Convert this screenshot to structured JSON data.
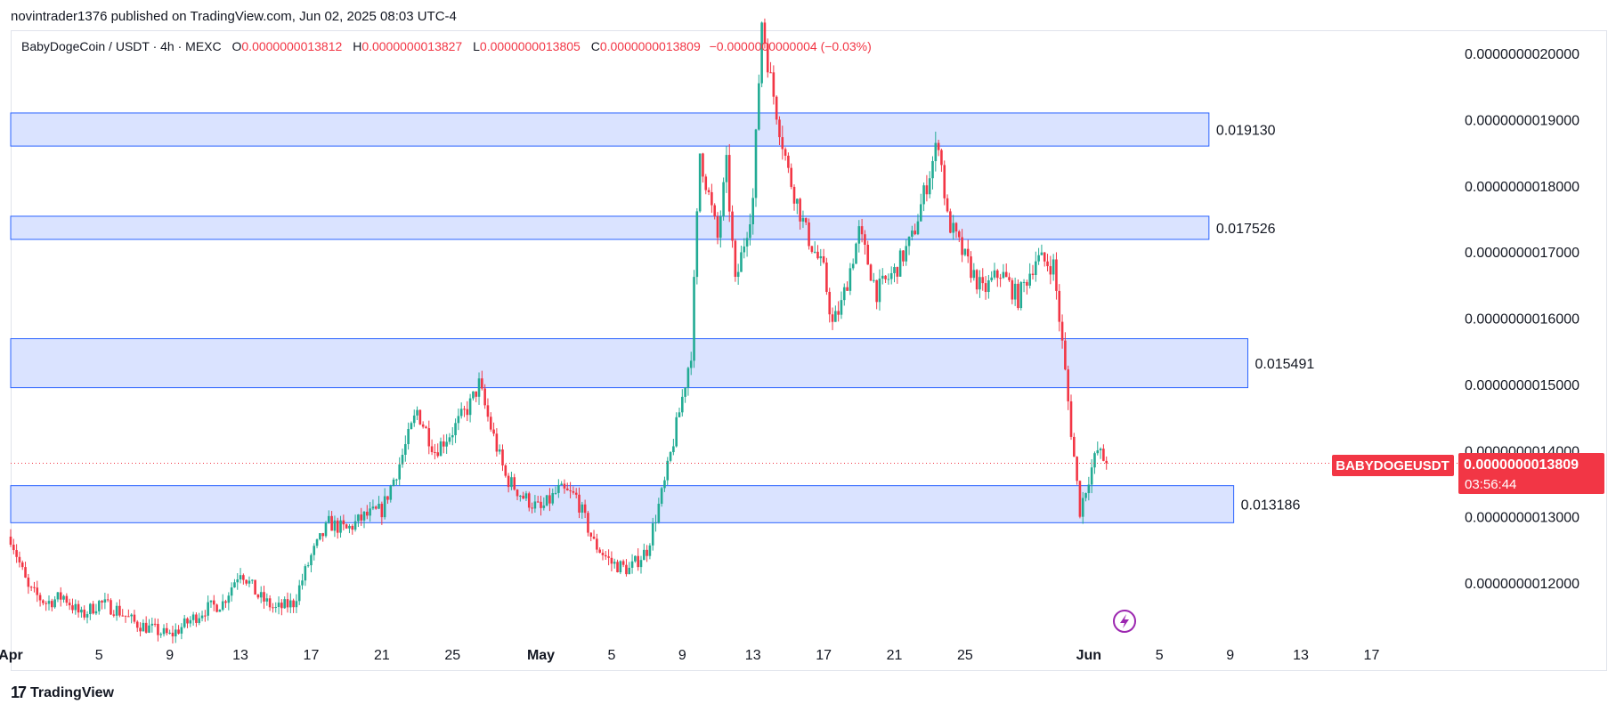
{
  "header": {
    "publish_line": "novintrader1376 published on TradingView.com, Jun 02, 2025 08:03 UTC-4"
  },
  "legend": {
    "symbol": "BabyDogeCoin / USDT · 4h · MEXC",
    "o_label": "O",
    "o_value": "0.0000000013812",
    "h_label": "H",
    "h_value": "0.0000000013827",
    "l_label": "L",
    "l_value": "0.0000000013805",
    "c_label": "C",
    "c_value": "0.0000000013809",
    "change": "−0.0000000000004 (−0.03%)"
  },
  "price_tag": {
    "symbol": "BABYDOGEUSDT",
    "price": "0.0000000013809",
    "countdown": "03:56:44"
  },
  "footer": {
    "brand": "TradingView"
  },
  "colors": {
    "up": "#22ab94",
    "down": "#f23645",
    "zone_fill": "#d6e0ff",
    "zone_stroke": "#2962ff",
    "price_line": "#f23645",
    "lightning": "#9c27b0"
  },
  "chart_data": {
    "type": "candlestick",
    "ylim": [
      1.13e-09,
      2.12e-09
    ],
    "y_ticks": [
      {
        "value": 1.2e-09,
        "label": "0.0000000012000"
      },
      {
        "value": 1.3e-09,
        "label": "0.0000000013000"
      },
      {
        "value": 1.4e-09,
        "label": "0.0000000014000"
      },
      {
        "value": 1.5e-09,
        "label": "0.0000000015000"
      },
      {
        "value": 1.6e-09,
        "label": "0.0000000016000"
      },
      {
        "value": 1.7e-09,
        "label": "0.0000000017000"
      },
      {
        "value": 1.8e-09,
        "label": "0.0000000018000"
      },
      {
        "value": 1.9e-09,
        "label": "0.0000000019000"
      },
      {
        "value": 2e-09,
        "label": "0.0000000020000"
      }
    ],
    "x_ticks": [
      {
        "day": 0,
        "label": "Apr"
      },
      {
        "day": 5,
        "label": "5"
      },
      {
        "day": 9,
        "label": "9"
      },
      {
        "day": 13,
        "label": "13"
      },
      {
        "day": 17,
        "label": "17"
      },
      {
        "day": 21,
        "label": "21"
      },
      {
        "day": 25,
        "label": "25"
      },
      {
        "day": 30,
        "label": "May"
      },
      {
        "day": 34,
        "label": "5"
      },
      {
        "day": 38,
        "label": "9"
      },
      {
        "day": 42,
        "label": "13"
      },
      {
        "day": 46,
        "label": "17"
      },
      {
        "day": 50,
        "label": "21"
      },
      {
        "day": 54,
        "label": "25"
      },
      {
        "day": 61,
        "label": "Jun"
      },
      {
        "day": 65,
        "label": "5"
      },
      {
        "day": 69,
        "label": "9"
      },
      {
        "day": 73,
        "label": "13"
      },
      {
        "day": 77,
        "label": "17"
      }
    ],
    "zones": [
      {
        "label": "0.019130",
        "top": 1.91e-09,
        "bottom": 1.86e-09,
        "end_day": 67.8
      },
      {
        "label": "0.017526",
        "top": 1.754e-09,
        "bottom": 1.719e-09,
        "end_day": 67.8
      },
      {
        "label": "0.015491",
        "top": 1.569e-09,
        "bottom": 1.495e-09,
        "end_day": 70.0
      },
      {
        "label": "0.013186",
        "top": 1.347e-09,
        "bottom": 1.291e-09,
        "end_day": 69.2
      }
    ],
    "last_price": 1.3809e-09,
    "close_path": [
      [
        0,
        1.27e-09
      ],
      [
        1,
        1.19e-09
      ],
      [
        2,
        1.17e-09
      ],
      [
        3,
        1.18e-09
      ],
      [
        4,
        1.15e-09
      ],
      [
        5,
        1.17e-09
      ],
      [
        6,
        1.16e-09
      ],
      [
        7,
        1.14e-09
      ],
      [
        8,
        1.13e-09
      ],
      [
        9,
        1.12e-09
      ],
      [
        10,
        1.14e-09
      ],
      [
        11,
        1.16e-09
      ],
      [
        12,
        1.17e-09
      ],
      [
        13,
        1.22e-09
      ],
      [
        14,
        1.18e-09
      ],
      [
        15,
        1.16e-09
      ],
      [
        16,
        1.17e-09
      ],
      [
        17,
        1.24e-09
      ],
      [
        18,
        1.29e-09
      ],
      [
        19,
        1.28e-09
      ],
      [
        20,
        1.3e-09
      ],
      [
        21,
        1.31e-09
      ],
      [
        22,
        1.38e-09
      ],
      [
        23,
        1.46e-09
      ],
      [
        24,
        1.4e-09
      ],
      [
        25,
        1.43e-09
      ],
      [
        26,
        1.47e-09
      ],
      [
        26.5,
        1.5e-09
      ],
      [
        27,
        1.45e-09
      ],
      [
        28,
        1.36e-09
      ],
      [
        29,
        1.33e-09
      ],
      [
        30,
        1.31e-09
      ],
      [
        31,
        1.34e-09
      ],
      [
        32,
        1.33e-09
      ],
      [
        33,
        1.26e-09
      ],
      [
        34,
        1.23e-09
      ],
      [
        35,
        1.22e-09
      ],
      [
        36,
        1.25e-09
      ],
      [
        37,
        1.35e-09
      ],
      [
        38,
        1.48e-09
      ],
      [
        38.5,
        1.55e-09
      ],
      [
        39,
        1.85e-09
      ],
      [
        40,
        1.72e-09
      ],
      [
        40.5,
        1.83e-09
      ],
      [
        41,
        1.65e-09
      ],
      [
        42,
        1.78e-09
      ],
      [
        42.5,
        2.05e-09
      ],
      [
        43,
        1.96e-09
      ],
      [
        44,
        1.82e-09
      ],
      [
        45,
        1.73e-09
      ],
      [
        46,
        1.67e-09
      ],
      [
        46.5,
        1.59e-09
      ],
      [
        47,
        1.62e-09
      ],
      [
        48,
        1.73e-09
      ],
      [
        49,
        1.64e-09
      ],
      [
        50,
        1.67e-09
      ],
      [
        51,
        1.72e-09
      ],
      [
        52,
        1.82e-09
      ],
      [
        52.5,
        1.87e-09
      ],
      [
        53,
        1.75e-09
      ],
      [
        54,
        1.69e-09
      ],
      [
        55,
        1.64e-09
      ],
      [
        56,
        1.67e-09
      ],
      [
        57,
        1.63e-09
      ],
      [
        58,
        1.69e-09
      ],
      [
        59,
        1.68e-09
      ],
      [
        59.5,
        1.56e-09
      ],
      [
        60,
        1.43e-09
      ],
      [
        60.5,
        1.31e-09
      ],
      [
        61,
        1.36e-09
      ],
      [
        61.5,
        1.4e-09
      ],
      [
        62,
        1.38e-09
      ]
    ]
  }
}
